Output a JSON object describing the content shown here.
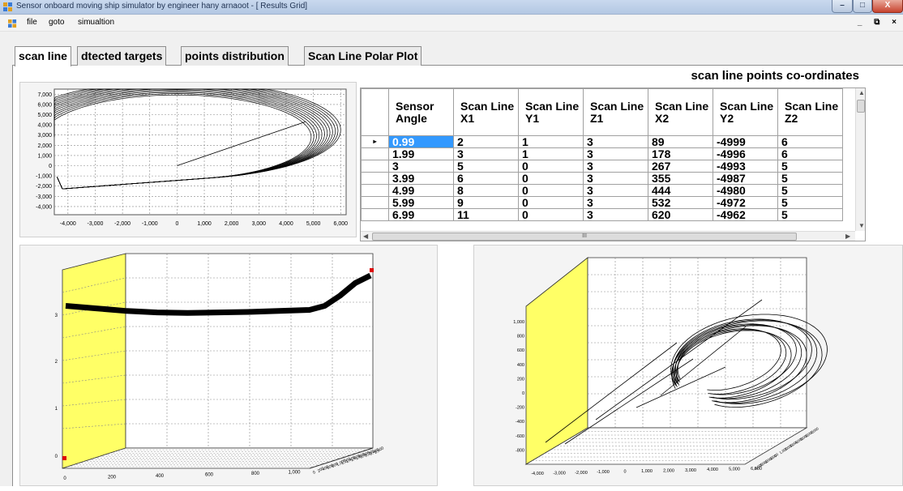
{
  "window": {
    "title": "Sensor onboard moving ship simulator by engineer hany arnaoot - [ Results Grid]",
    "minimize": "–",
    "maximize": "□",
    "close": "X"
  },
  "menu": {
    "items": [
      "file",
      "goto",
      "simualtion"
    ],
    "mdi_controls": "_ ⧉ ×"
  },
  "tabs": [
    {
      "label": "scan line",
      "active": true
    },
    {
      "label": "dtected targets",
      "active": false
    },
    {
      "label": "points distribution",
      "active": false
    },
    {
      "label": "Scan Line Polar Plot",
      "active": false
    }
  ],
  "grid": {
    "title": "scan line points co-ordinates",
    "columns": [
      "Sensor Angle",
      "Scan Line X1",
      "Scan Line Y1",
      "Scan Line Z1",
      "Scan Line X2",
      "Scan Line Y2",
      "Scan Line Z2"
    ],
    "rows": [
      [
        "0.99",
        "2",
        "1",
        "3",
        "89",
        "-4999",
        "6"
      ],
      [
        "1.99",
        "3",
        "1",
        "3",
        "178",
        "-4996",
        "6"
      ],
      [
        "3",
        "5",
        "0",
        "3",
        "267",
        "-4993",
        "5"
      ],
      [
        "3.99",
        "6",
        "0",
        "3",
        "355",
        "-4987",
        "5"
      ],
      [
        "4.99",
        "8",
        "0",
        "3",
        "444",
        "-4980",
        "5"
      ],
      [
        "5.99",
        "9",
        "0",
        "3",
        "532",
        "-4972",
        "5"
      ],
      [
        "6.99",
        "11",
        "0",
        "3",
        "620",
        "-4962",
        "5"
      ]
    ],
    "selected_row": 0,
    "current_row_marker": "▸",
    "hscroll_grip": "III"
  },
  "chart_data": [
    {
      "type": "line",
      "title": "",
      "xlabel": "",
      "ylabel": "",
      "xlim": [
        -4500,
        6200
      ],
      "ylim": [
        -4800,
        7500
      ],
      "xticks": [
        "-4,000",
        "-3,000",
        "-2,000",
        "-1,000",
        "0",
        "1,000",
        "2,000",
        "3,000",
        "4,000",
        "5,000",
        "6,000"
      ],
      "yticks": [
        "7,000",
        "6,000",
        "5,000",
        "4,000",
        "3,000",
        "2,000",
        "1,000",
        "0",
        "-1,000",
        "-2,000",
        "-3,000",
        "-4,000"
      ],
      "grid": true,
      "scan_line": {
        "x": [
          0,
          4700
        ],
        "y": [
          0,
          4300
        ]
      },
      "arc_outer": {
        "rx": 6000,
        "ry": 4800,
        "center": [
          0,
          3500
        ]
      },
      "arc_count": 12
    },
    {
      "type": "line",
      "title": "",
      "yticks": [
        "3",
        "2",
        "1",
        "0"
      ],
      "xticks": [
        "0",
        "200",
        "400",
        "600",
        "800",
        "1,000"
      ],
      "ztick_labels": [
        "2,600",
        "2,400",
        "2,200",
        "2,000",
        "1,800",
        "1,600",
        "1,400",
        "1,200",
        "1,000",
        "800",
        "600",
        "400",
        "200",
        "0"
      ],
      "grid": true,
      "series": [
        {
          "values_x": [
            0,
            100,
            200,
            300,
            400,
            500,
            600,
            700,
            800,
            850,
            900,
            950,
            1000
          ],
          "values_y": [
            3.0,
            2.95,
            2.9,
            2.87,
            2.86,
            2.87,
            2.88,
            2.9,
            2.92,
            3.0,
            3.2,
            3.45,
            3.6
          ]
        }
      ]
    },
    {
      "type": "line",
      "title": "",
      "yticks": [
        "1,000",
        "800",
        "600",
        "400",
        "200",
        "0",
        "-200",
        "-400",
        "-600",
        "-800"
      ],
      "xticks": [
        "-4,000",
        "-3,000",
        "-2,000",
        "-1,000",
        "0",
        "1,000",
        "2,000",
        "3,000",
        "4,000",
        "5,000",
        "6,000"
      ],
      "ztick_labels": [
        "7,000",
        "6,000",
        "5,000",
        "4,000",
        "3,000",
        "2,000",
        "1,000",
        "0",
        "-1,000",
        "-2,000",
        "-3,000",
        "-4,000"
      ],
      "grid": true
    }
  ]
}
